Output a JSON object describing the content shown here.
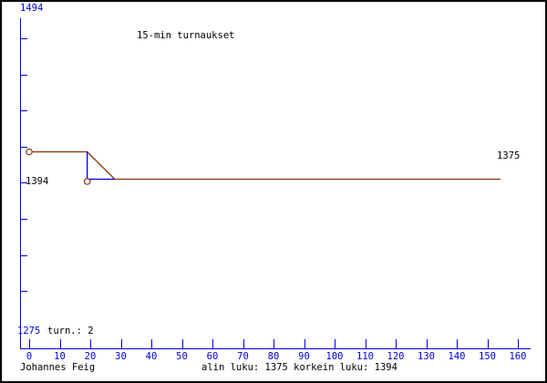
{
  "title": "15-min turnaukset",
  "colors": {
    "axis_blue": "#0000e0",
    "line_maroon": "#8b2e0a",
    "text_black": "#000000",
    "background": "#ffffff"
  },
  "y_axis": {
    "top_label": "1494",
    "mid_label": "1394",
    "bottom_label": "1275"
  },
  "turn_count_label": "turn.: 2",
  "final_rating_label": "1375",
  "x_axis": {
    "labels": [
      "0",
      "10",
      "20",
      "30",
      "40",
      "50",
      "60",
      "70",
      "80",
      "90",
      "100",
      "110",
      "120",
      "130",
      "140",
      "150",
      "160"
    ]
  },
  "footer": {
    "player": "Johannes Feig",
    "stats": "alin luku: 1375 korkein luku: 1394"
  },
  "chart_data": {
    "type": "line",
    "title": "15-min turnaukset",
    "player": "Johannes Feig",
    "tournaments": 2,
    "lowest_rating": 1375,
    "highest_rating": 1394,
    "final_rating": 1375,
    "y_axis_top": 1494,
    "y_axis_bottom": 1275,
    "x_axis_range": [
      0,
      160
    ],
    "x_tick_step": 10,
    "tournament_ratings": [
      1394,
      1375
    ],
    "series": [
      {
        "name": "rating-history",
        "color": "#8b2e0a",
        "points_x": [
          0,
          19,
          28,
          154.3
        ],
        "points_r": [
          1394,
          1394,
          1375,
          1375
        ]
      },
      {
        "name": "last-change-highlight",
        "color": "#0000e0",
        "points_x": [
          19,
          19,
          28
        ],
        "points_r": [
          1394,
          1375,
          1375
        ]
      }
    ],
    "markers": [
      {
        "x": 0,
        "r": 1394
      },
      {
        "x": 19,
        "r": 1375
      }
    ]
  }
}
